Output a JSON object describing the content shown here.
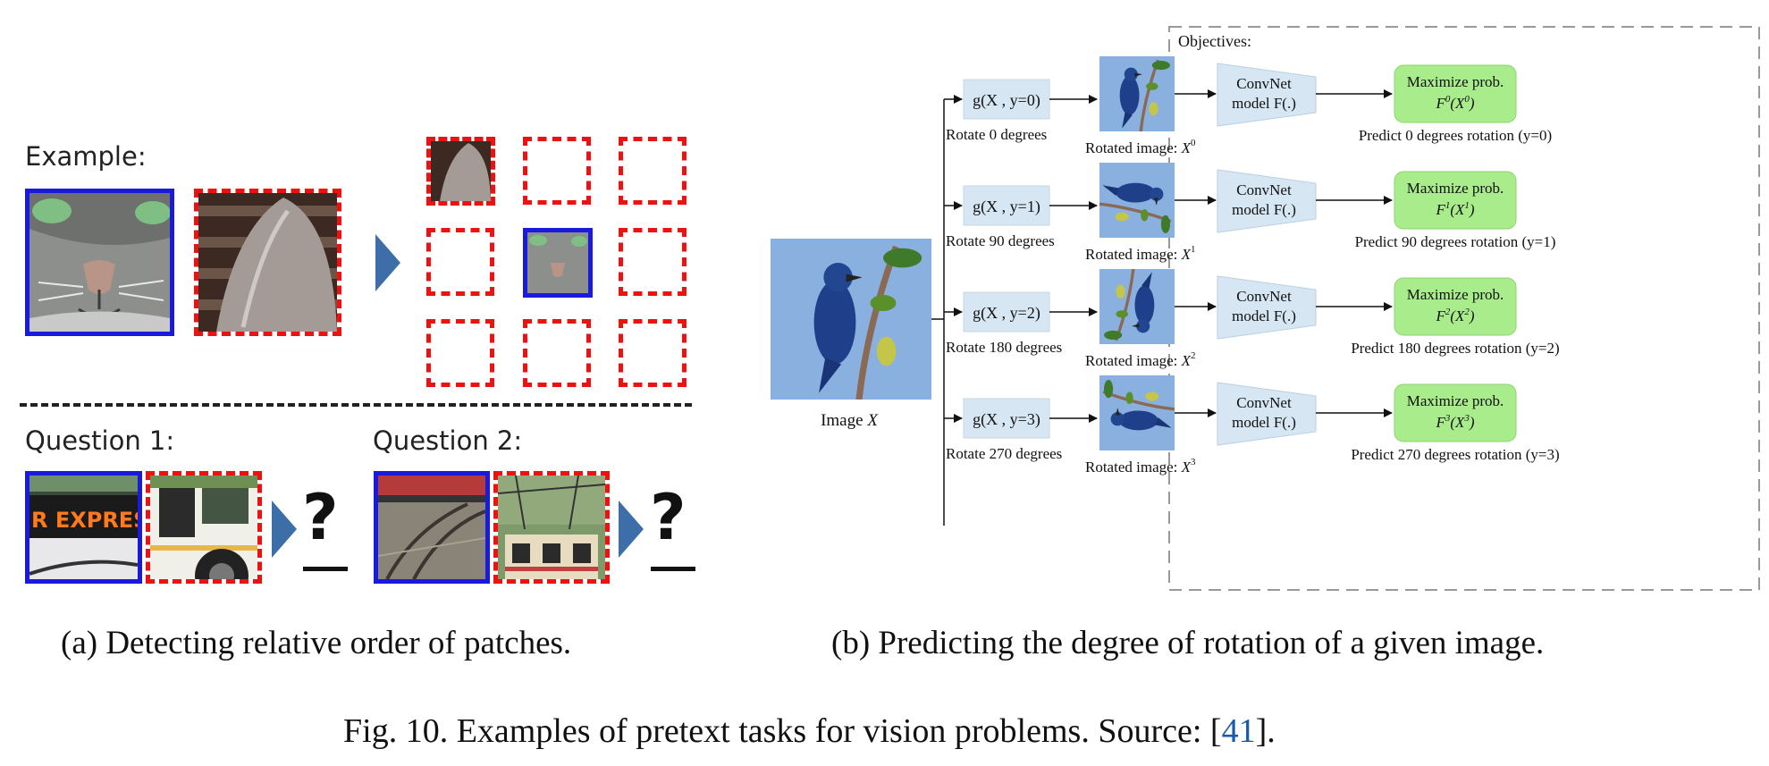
{
  "panel_a": {
    "example_label": "Example:",
    "question1_label": "Question 1:",
    "question2_label": "Question 2:",
    "question_mark": "?",
    "bus_sign_text": "R EXPRESS",
    "caption": "(a) Detecting relative order of patches."
  },
  "panel_b": {
    "image_label": "Image",
    "image_var": "X",
    "objectives_label": "Objectives:",
    "rows": [
      {
        "g": "g(X , y=0)",
        "rotate": "Rotate 0 degrees",
        "rot_label": "Rotated image:",
        "x": "X",
        "sup": "0",
        "convnet1": "ConvNet",
        "convnet2": "model F(.)",
        "max": "Maximize prob.",
        "f": "F",
        "predict": "Predict 0 degrees rotation (y=0)"
      },
      {
        "g": "g(X , y=1)",
        "rotate": "Rotate 90 degrees",
        "rot_label": "Rotated image:",
        "x": "X",
        "sup": "1",
        "convnet1": "ConvNet",
        "convnet2": "model F(.)",
        "max": "Maximize prob.",
        "f": "F",
        "predict": "Predict 90 degrees rotation (y=1)"
      },
      {
        "g": "g(X , y=2)",
        "rotate": "Rotate 180 degrees",
        "rot_label": "Rotated image:",
        "x": "X",
        "sup": "2",
        "convnet1": "ConvNet",
        "convnet2": "model F(.)",
        "max": "Maximize prob.",
        "f": "F",
        "predict": "Predict 180 degrees rotation (y=2)"
      },
      {
        "g": "g(X , y=3)",
        "rotate": "Rotate 270 degrees",
        "rot_label": "Rotated image:",
        "x": "X",
        "sup": "3",
        "convnet1": "ConvNet",
        "convnet2": "model F(.)",
        "max": "Maximize prob.",
        "f": "F",
        "predict": "Predict 270 degrees rotation (y=3)"
      }
    ],
    "caption": "(b) Predicting the degree of rotation of a given image."
  },
  "figure": {
    "caption_prefix": "Fig. 10.  Examples of pretext tasks for vision problems. Source: [",
    "ref": "41",
    "caption_suffix": "]."
  },
  "colors": {
    "blue_border": "#1a1adc",
    "red_dash": "#ee1111",
    "chevron": "#3d6ea8",
    "box_fill": "#d6e6f2",
    "green_fill": "#a9ec8c",
    "sky": "#8ab0e0",
    "ref_link": "#1a5aa8"
  }
}
